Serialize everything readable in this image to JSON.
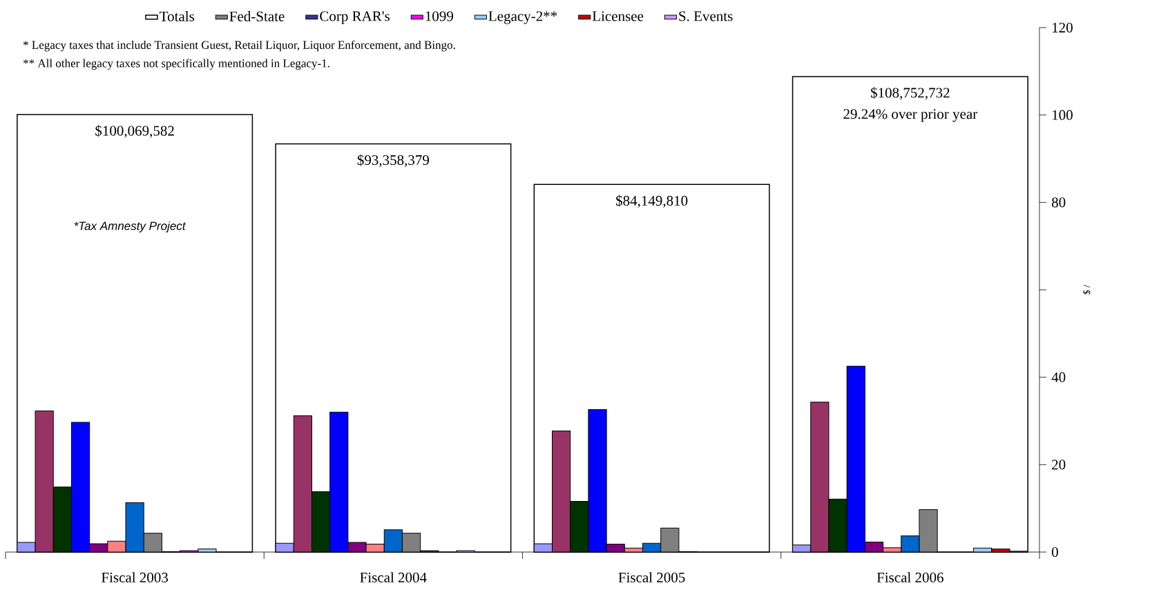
{
  "chart_data": {
    "type": "bar",
    "categories": [
      "Fiscal 2003",
      "Fiscal 2004",
      "Fiscal 2005",
      "Fiscal 2006"
    ],
    "ylabel": "$ /",
    "ylim": [
      0,
      120
    ],
    "yticks": [
      0,
      20,
      40,
      {
        "value": 60,
        "label": null
      },
      80,
      100,
      120
    ],
    "legend": "top",
    "series": [
      {
        "name": "Totals",
        "color": "#ffffff",
        "values": [
          100.1,
          93.4,
          84.1,
          108.8
        ]
      },
      {
        "color": "#9999ff",
        "values": [
          2.2,
          2.0,
          1.9,
          1.6
        ]
      },
      {
        "color": "#993366",
        "values": [
          32.3,
          31.2,
          27.7,
          34.3
        ]
      },
      {
        "color": "#003300",
        "values": [
          14.9,
          13.8,
          11.6,
          12.1
        ]
      },
      {
        "color": "#0000ff",
        "values": [
          29.7,
          32.0,
          32.6,
          42.5
        ]
      },
      {
        "color": "#800080",
        "values": [
          1.9,
          2.2,
          1.8,
          2.3
        ]
      },
      {
        "color": "#ff8080",
        "values": [
          2.5,
          1.8,
          0.9,
          1.0
        ]
      },
      {
        "color": "#0066cc",
        "values": [
          11.3,
          5.1,
          2.0,
          3.7
        ]
      },
      {
        "name": "Fed-State",
        "color": "#808080",
        "values": [
          4.3,
          4.3,
          5.5,
          9.7
        ]
      },
      {
        "name": "Corp RAR's",
        "color": "#333399",
        "values": [
          0.1,
          0.3,
          0.1,
          0
        ]
      },
      {
        "name": "1099",
        "color": "#ff00ff",
        "values": [
          0.3,
          0,
          0,
          0
        ]
      },
      {
        "name": "Legacy-2**",
        "color": "#99ccff",
        "values": [
          0.7,
          0.3,
          0,
          0.9
        ]
      },
      {
        "name": "Licensee",
        "color": "#cc0000",
        "values": [
          0,
          0,
          0,
          0.7
        ]
      },
      {
        "name": "S. Events",
        "color": "#cc99ff",
        "values": [
          0,
          0,
          0,
          0.2
        ]
      }
    ],
    "annotations": [
      "*  Legacy taxes that include Transient Guest, Retail Liquor, Liquor Enforcement, and Bingo.",
      "** All other legacy taxes not specifically mentioned in Legacy-1.",
      "*Tax Amnesty Project",
      {
        "text": "$100,069,582",
        "x": "Fiscal 2003",
        "y": 100.1
      },
      {
        "text": "$93,358,379",
        "x": "Fiscal 2004",
        "y": 93.4
      },
      {
        "text": "$84,149,810",
        "x": "Fiscal 2005",
        "y": 84.1
      },
      {
        "text": "$108,752,732",
        "x": "Fiscal 2006",
        "y": 108.8
      },
      {
        "text": "29.24% over prior year",
        "x": "Fiscal 2006",
        "y": 108.8
      }
    ]
  }
}
